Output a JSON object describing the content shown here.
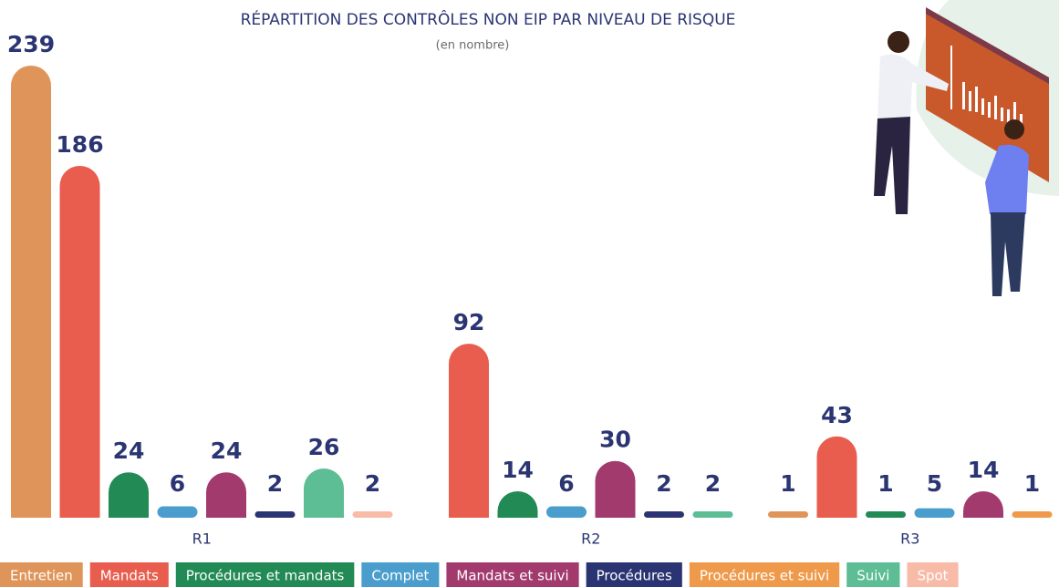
{
  "chart_data": {
    "type": "bar",
    "title": "RÉPARTITION DES CONTRÔLES NON EIP PAR NIVEAU DE RISQUE",
    "subtitle": "(en nombre)",
    "categories": [
      "R1",
      "R2",
      "R3"
    ],
    "series": [
      {
        "name": "Entretien",
        "color": "#df9459",
        "values": [
          239,
          null,
          1
        ]
      },
      {
        "name": "Mandats",
        "color": "#e85d4e",
        "values": [
          186,
          92,
          43
        ]
      },
      {
        "name": "Procédures et mandats",
        "color": "#218a55",
        "values": [
          24,
          14,
          1
        ]
      },
      {
        "name": "Complet",
        "color": "#4a9dcc",
        "values": [
          6,
          6,
          5
        ]
      },
      {
        "name": "Mandats et suivi",
        "color": "#a23a6d",
        "values": [
          24,
          30,
          14
        ]
      },
      {
        "name": "Procédures",
        "color": "#2b3472",
        "values": [
          2,
          2,
          null
        ]
      },
      {
        "name": "Procédures et suivi",
        "color": "#ef9a4b",
        "values": [
          null,
          null,
          1
        ]
      },
      {
        "name": "Suivi",
        "color": "#5dbd95",
        "values": [
          26,
          2,
          null
        ]
      },
      {
        "name": "Spot",
        "color": "#f7bba8",
        "values": [
          2,
          null,
          null
        ]
      }
    ]
  }
}
